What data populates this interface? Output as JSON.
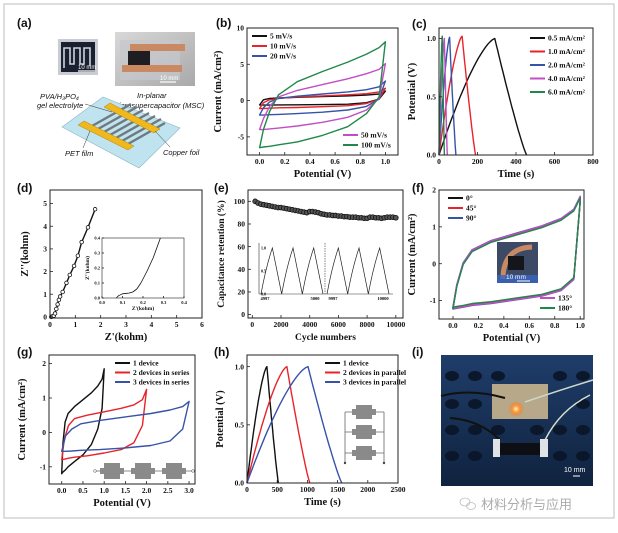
{
  "panel_labels": {
    "a": "(a)",
    "b": "(b)",
    "c": "(c)",
    "d": "(d)",
    "e": "(e)",
    "f": "(f)",
    "g": "(g)",
    "h": "(h)",
    "i": "(i)"
  },
  "panel_a": {
    "electrolyte_line1": "PVA/H₃PO₄",
    "electrolyte_line2": "gel electrolyte",
    "msc_line1": "In-planar",
    "msc_line2": "Microsupercapacitor (MSC)",
    "pet_label": "PET film",
    "copper_label": "Copper foil",
    "photo1_scale": "10 mm",
    "photo2_scale": "10 mm"
  },
  "panel_f_photo": {
    "scale": "10 mm"
  },
  "panel_i": {
    "scale": "10 mm"
  },
  "watermark": "材料分析与应用",
  "chart_data": [
    {
      "id": "b",
      "type": "line",
      "subtype": "cv",
      "xlabel": "Potential (V)",
      "ylabel": "Current (mA/cm²)",
      "xlim": [
        -0.1,
        1.1
      ],
      "ylim": [
        -7.5,
        10
      ],
      "xticks": {
        "values": [
          0,
          0.2,
          0.4,
          0.6,
          0.8,
          1.0
        ],
        "labels": [
          "0.0",
          "0.2",
          "0.4",
          "0.6",
          "0.8",
          "1.0"
        ]
      },
      "yticks": {
        "values": [
          -5,
          0,
          5,
          10
        ],
        "labels": [
          "-5",
          "0",
          "5",
          "10"
        ]
      },
      "x_grid": [
        0,
        0.03,
        0.08,
        0.15,
        0.3,
        0.5,
        0.7,
        0.85,
        0.95,
        1.0
      ],
      "series": [
        {
          "name": "5 mV/s",
          "color": "#111111",
          "legend": "top-left",
          "upper": [
            -0.6,
            0.1,
            0.3,
            0.35,
            0.45,
            0.55,
            0.65,
            0.75,
            0.9,
            1.3
          ],
          "lower": [
            -0.6,
            -0.62,
            -0.62,
            -0.6,
            -0.58,
            -0.55,
            -0.5,
            -0.3,
            0.2,
            1.3
          ]
        },
        {
          "name": "10 mV/s",
          "color": "#e8232a",
          "legend": "top-left",
          "upper": [
            -1.1,
            -0.3,
            0.1,
            0.3,
            0.5,
            0.65,
            0.8,
            0.95,
            1.2,
            1.7
          ],
          "lower": [
            -1.1,
            -1.1,
            -1.05,
            -1.0,
            -0.95,
            -0.85,
            -0.7,
            -0.4,
            0.2,
            1.7
          ]
        },
        {
          "name": "20 mV/s",
          "color": "#3753a8",
          "legend": "top-left",
          "upper": [
            -2,
            -1,
            -0.2,
            0.3,
            0.6,
            0.9,
            1.2,
            1.5,
            1.9,
            2.7
          ],
          "lower": [
            -2,
            -2,
            -1.95,
            -1.9,
            -1.8,
            -1.6,
            -1.3,
            -0.8,
            0.2,
            2.7
          ]
        },
        {
          "name": "50 mV/s",
          "color": "#c04fc4",
          "legend": "bottom-right",
          "upper": [
            -4,
            -2.5,
            -0.8,
            0.5,
            1.4,
            2.2,
            3.0,
            3.7,
            4.3,
            5.1
          ],
          "lower": [
            -4,
            -4,
            -3.9,
            -3.8,
            -3.5,
            -3.0,
            -2.3,
            -1.3,
            0.3,
            5.1
          ]
        },
        {
          "name": "100 mV/s",
          "color": "#20884a",
          "legend": "bottom-right",
          "upper": [
            -6.5,
            -4,
            -1.5,
            0.8,
            2.6,
            4.0,
            5.3,
            6.4,
            7.3,
            8.1
          ],
          "lower": [
            -6.5,
            -6.4,
            -6.3,
            -6.1,
            -5.7,
            -4.8,
            -3.6,
            -1.8,
            0.5,
            8.1
          ]
        }
      ]
    },
    {
      "id": "c",
      "type": "line",
      "subtype": "gcd",
      "xlabel": "Time (s)",
      "ylabel": "Potential (V)",
      "xlim": [
        0,
        800
      ],
      "ylim": [
        0,
        1.09
      ],
      "xticks": {
        "values": [
          0,
          200,
          400,
          600,
          800
        ],
        "labels": [
          "0",
          "200",
          "400",
          "600",
          "800"
        ]
      },
      "yticks": {
        "values": [
          0,
          0.5,
          1.0
        ],
        "labels": [
          "0.0",
          "0.5",
          "1.0"
        ]
      },
      "series": [
        {
          "name": "0.5 mA/cm²",
          "color": "#111111",
          "legend": "top-right",
          "t_peak": 290,
          "t_end": 455,
          "v_peak": 1.0
        },
        {
          "name": "1.0 mA/cm²",
          "color": "#e8232a",
          "legend": "top-right",
          "t_peak": 120,
          "t_end": 190,
          "v_peak": 1.02
        },
        {
          "name": "2.0 mA/cm²",
          "color": "#3753a8",
          "legend": "top-right",
          "t_peak": 55,
          "t_end": 88,
          "v_peak": 1.01
        },
        {
          "name": "4.0 mA/cm²",
          "color": "#c04fc4",
          "legend": "top-right",
          "t_peak": 28,
          "t_end": 43,
          "v_peak": 1.0
        },
        {
          "name": "6.0 mA/cm²",
          "color": "#20884a",
          "legend": "top-right",
          "t_peak": 17,
          "t_end": 28,
          "v_peak": 1.02
        }
      ]
    },
    {
      "id": "d",
      "type": "scatter",
      "xlabel": "Z'(kohm)",
      "ylabel": "Z''(kohm)",
      "xlim": [
        0,
        6
      ],
      "ylim": [
        -0.05,
        5.6
      ],
      "xticks": {
        "values": [
          0,
          1,
          2,
          3,
          4,
          5,
          6
        ],
        "labels": [
          "0",
          "1",
          "2",
          "3",
          "4",
          "5",
          "6"
        ]
      },
      "yticks": {
        "values": [
          0,
          1,
          2,
          3,
          4,
          5
        ],
        "labels": [
          "0",
          "1",
          "2",
          "3",
          "4",
          "5"
        ]
      },
      "series": [
        {
          "name": "Nyquist",
          "color": "#111111",
          "x": [
            0.05,
            0.1,
            0.15,
            0.2,
            0.25,
            0.3,
            0.35,
            0.4,
            0.5,
            0.65,
            0.78,
            0.95,
            1.1,
            1.25,
            1.5,
            1.78
          ],
          "y": [
            0,
            0.02,
            0.05,
            0.15,
            0.35,
            0.55,
            0.75,
            0.9,
            1.1,
            1.5,
            1.85,
            2.25,
            2.7,
            3.3,
            3.95,
            4.75
          ]
        }
      ]
    },
    {
      "id": "d_inset",
      "type": "line",
      "xlabel": "Z'(kohm)",
      "ylabel": "Z''(kohm)",
      "xlim": [
        0,
        0.4
      ],
      "ylim": [
        0,
        0.4
      ],
      "xticks": {
        "values": [
          0,
          0.1,
          0.2,
          0.3,
          0.4
        ],
        "labels": [
          "0.0",
          "0.1",
          "0.2",
          "0.3",
          "0.4"
        ]
      },
      "yticks": {
        "values": [
          0,
          0.1,
          0.2,
          0.3,
          0.4
        ],
        "labels": [
          "0.0",
          "0.1",
          "0.2",
          "0.3",
          "0.4"
        ]
      },
      "series": [
        {
          "name": "Nyquist high frequency",
          "color": "#111111",
          "x": [
            0.07,
            0.08,
            0.1,
            0.13,
            0.15,
            0.17,
            0.19,
            0.22,
            0.25,
            0.285
          ],
          "y": [
            0,
            0.015,
            0.028,
            0.033,
            0.04,
            0.06,
            0.1,
            0.18,
            0.27,
            0.4
          ]
        }
      ]
    },
    {
      "id": "e",
      "type": "scatter",
      "xlabel": "Cycle numbers",
      "ylabel": "Capacitance retention (%)",
      "xlim": [
        -300,
        10500
      ],
      "ylim": [
        -3,
        110
      ],
      "xticks": {
        "values": [
          0,
          2000,
          4000,
          6000,
          8000,
          10000
        ],
        "labels": [
          "0",
          "2000",
          "4000",
          "6000",
          "8000",
          "10000"
        ]
      },
      "yticks": {
        "values": [
          0,
          20,
          40,
          60,
          80,
          100
        ],
        "labels": [
          "0",
          "20",
          "40",
          "60",
          "80",
          "100"
        ]
      },
      "series": [
        {
          "name": "Retention",
          "color": "#111111",
          "x_start": 200,
          "x_step": 200,
          "y": [
            100,
            98.5,
            97.5,
            97,
            96.5,
            96,
            95.5,
            95,
            94.5,
            94.5,
            94,
            93.5,
            93,
            92.5,
            92,
            91.5,
            91,
            90.5,
            90,
            91,
            91,
            90.5,
            90,
            89,
            88.5,
            88,
            88,
            87.5,
            87.5,
            87,
            87,
            86.5,
            86.5,
            86,
            86,
            86,
            85.5,
            85.5,
            85,
            85,
            86,
            86,
            85.5,
            85.5,
            85,
            85.5,
            86,
            86,
            86,
            85.5
          ]
        }
      ],
      "inset": {
        "xtick_labels": [
          "4997",
          "5000",
          "9997",
          "10000"
        ],
        "ytick_labels": [
          "0.0",
          "0.5",
          "1.0"
        ],
        "cycles_per_side": 3
      }
    },
    {
      "id": "f",
      "type": "line",
      "subtype": "cv",
      "xlabel": "Potential (V)",
      "ylabel": "Current (mA/cm²)",
      "xlim": [
        -0.11,
        1.03
      ],
      "ylim": [
        -1.5,
        2
      ],
      "xticks": {
        "values": [
          0,
          0.2,
          0.4,
          0.6,
          0.8,
          1.0
        ],
        "labels": [
          "0.0",
          "0.2",
          "0.4",
          "0.6",
          "0.8",
          "1.0"
        ]
      },
      "yticks": {
        "values": [
          -1,
          0,
          1,
          2
        ],
        "labels": [
          "-1",
          "0",
          "1",
          "2"
        ]
      },
      "x_grid": [
        0,
        0.03,
        0.08,
        0.15,
        0.3,
        0.5,
        0.7,
        0.85,
        0.95,
        1.0
      ],
      "series": [
        {
          "name": "0°",
          "color": "#111111",
          "legend": "top-left",
          "offset": 0,
          "upper": [
            -1.2,
            -0.6,
            0,
            0.35,
            0.6,
            0.8,
            1.0,
            1.2,
            1.45,
            1.8
          ],
          "lower": [
            -1.2,
            -1.18,
            -1.15,
            -1.1,
            -1.05,
            -0.95,
            -0.85,
            -0.7,
            -0.4,
            1.7
          ]
        },
        {
          "name": "45°",
          "color": "#e8232a",
          "legend": "top-left",
          "offset": 0.01,
          "upper": [
            -1.2,
            -0.6,
            0,
            0.35,
            0.6,
            0.8,
            1.0,
            1.2,
            1.45,
            1.8
          ],
          "lower": [
            -1.2,
            -1.18,
            -1.15,
            -1.1,
            -1.05,
            -0.95,
            -0.85,
            -0.7,
            -0.4,
            1.7
          ]
        },
        {
          "name": "90°",
          "color": "#3753a8",
          "legend": "top-left",
          "offset": 0.03,
          "upper": [
            -1.2,
            -0.6,
            0,
            0.35,
            0.6,
            0.8,
            1.0,
            1.2,
            1.45,
            1.8
          ],
          "lower": [
            -1.2,
            -1.18,
            -1.15,
            -1.1,
            -1.05,
            -0.95,
            -0.85,
            -0.7,
            -0.4,
            1.7
          ]
        },
        {
          "name": "135°",
          "color": "#c04fc4",
          "legend": "bottom-right",
          "offset": 0.02,
          "upper": [
            -1.2,
            -0.6,
            0,
            0.35,
            0.6,
            0.8,
            1.0,
            1.2,
            1.45,
            1.8
          ],
          "lower": [
            -1.2,
            -1.18,
            -1.15,
            -1.1,
            -1.05,
            -0.95,
            -0.85,
            -0.7,
            -0.4,
            1.7
          ]
        },
        {
          "name": "180°",
          "color": "#20884a",
          "legend": "bottom-right",
          "offset": -0.02,
          "upper": [
            -1.2,
            -0.6,
            0,
            0.35,
            0.6,
            0.8,
            1.0,
            1.2,
            1.45,
            1.8
          ],
          "lower": [
            -1.2,
            -1.18,
            -1.15,
            -1.1,
            -1.05,
            -0.95,
            -0.85,
            -0.7,
            -0.4,
            1.7
          ]
        }
      ]
    },
    {
      "id": "g",
      "type": "line",
      "subtype": "cv",
      "xlabel": "Potential (V)",
      "ylabel": "Current (mA/cm²)",
      "xlim": [
        -0.3,
        3.14
      ],
      "ylim": [
        -1.5,
        2.25
      ],
      "xticks": {
        "values": [
          0,
          0.5,
          1.0,
          1.5,
          2.0,
          2.5,
          3.0
        ],
        "labels": [
          "0.0",
          "0.5",
          "1.0",
          "1.5",
          "2.0",
          "2.5",
          "3.0"
        ]
      },
      "yticks": {
        "values": [
          -1,
          0,
          1,
          2
        ],
        "labels": [
          "-1",
          "0",
          "1",
          "2"
        ]
      },
      "x_grid": [
        0,
        0.03,
        0.08,
        0.15,
        0.3,
        0.5,
        0.7,
        0.85,
        0.95,
        1.0
      ],
      "series": [
        {
          "name": "1 device",
          "color": "#111111",
          "legend": "top-left",
          "x_scale": 1,
          "upper": [
            -1.2,
            -0.3,
            0.3,
            0.55,
            0.75,
            0.95,
            1.15,
            1.35,
            1.55,
            1.85
          ],
          "lower": [
            -1.2,
            -1.15,
            -1.1,
            -1.0,
            -0.85,
            -0.65,
            -0.35,
            0.1,
            0.7,
            1.85
          ]
        },
        {
          "name": "2 devices in series",
          "color": "#e8232a",
          "legend": "top-left",
          "x_scale": 2,
          "upper": [
            -0.8,
            -0.2,
            0.2,
            0.4,
            0.5,
            0.6,
            0.7,
            0.8,
            0.95,
            1.25
          ],
          "lower": [
            -0.8,
            -0.78,
            -0.75,
            -0.72,
            -0.68,
            -0.6,
            -0.5,
            -0.3,
            0.2,
            1.25
          ]
        },
        {
          "name": "3 devices in series",
          "color": "#3753a8",
          "legend": "top-left",
          "x_scale": 3,
          "upper": [
            -0.55,
            -0.1,
            0.1,
            0.25,
            0.35,
            0.45,
            0.55,
            0.65,
            0.75,
            0.9
          ],
          "lower": [
            -0.55,
            -0.55,
            -0.54,
            -0.52,
            -0.5,
            -0.45,
            -0.38,
            -0.25,
            0.1,
            0.9
          ]
        }
      ]
    },
    {
      "id": "h",
      "type": "line",
      "subtype": "gcd",
      "xlabel": "Time (s)",
      "ylabel": "Potential (V)",
      "xlim": [
        0,
        2500
      ],
      "ylim": [
        0,
        1.1
      ],
      "xticks": {
        "values": [
          0,
          500,
          1000,
          1500,
          2000,
          2500
        ],
        "labels": [
          "0",
          "500",
          "1000",
          "1500",
          "2000",
          "2500"
        ]
      },
      "yticks": {
        "values": [
          0,
          0.5,
          1.0
        ],
        "labels": [
          "0.0",
          "0.5",
          "1.0"
        ]
      },
      "series": [
        {
          "name": "1 device",
          "color": "#111111",
          "legend": "top-left",
          "t_peak": 330,
          "t_end": 520,
          "v_peak": 1.0
        },
        {
          "name": "2 devices in parallel",
          "color": "#e8232a",
          "legend": "top-left",
          "t_peak": 660,
          "t_end": 1040,
          "v_peak": 1.0
        },
        {
          "name": "3 devices in parallel",
          "color": "#3753a8",
          "legend": "top-left",
          "t_peak": 1010,
          "t_end": 1570,
          "v_peak": 1.0
        }
      ]
    }
  ]
}
